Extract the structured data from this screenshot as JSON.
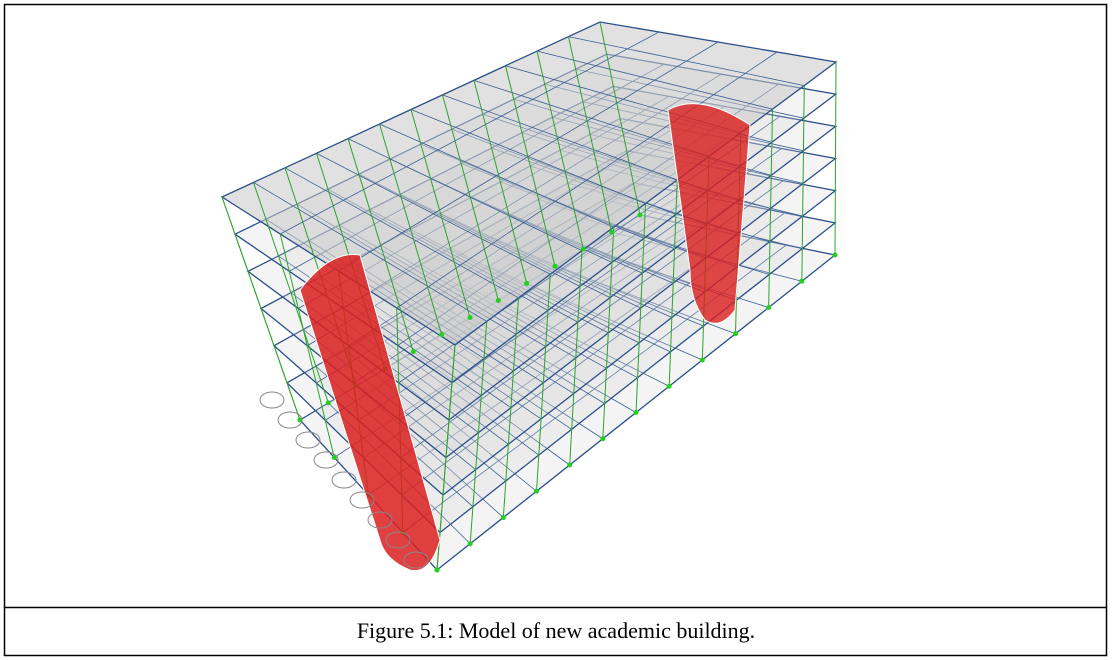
{
  "caption": "Figure 5.1: Model of new academic building."
}
